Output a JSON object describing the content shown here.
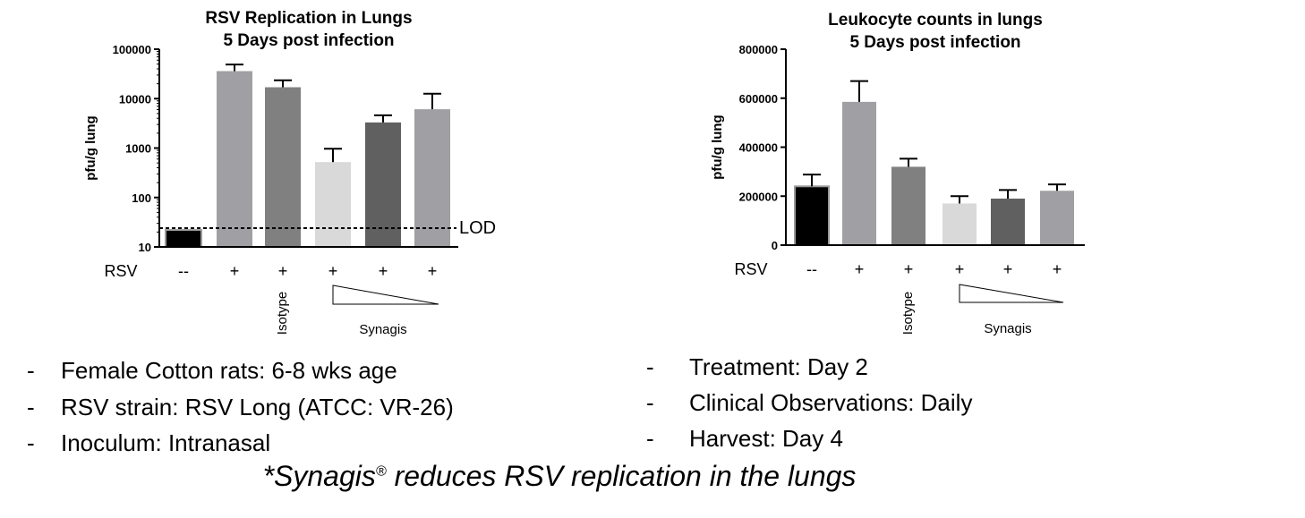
{
  "chart_data": [
    {
      "type": "bar",
      "title": [
        "RSV Replication in Lungs",
        "5 Days post infection"
      ],
      "ylabel": "pfu/g lung",
      "yscale": "log",
      "ylim": [
        10,
        100000
      ],
      "yticks": [
        10,
        100,
        1000,
        10000,
        100000
      ],
      "ytick_labels": [
        "10",
        "100",
        "1000",
        "10000",
        "100000"
      ],
      "row_label": "RSV",
      "categories": [
        "--",
        "+",
        "+",
        "+",
        "+",
        "+"
      ],
      "values": [
        22,
        36000,
        17000,
        520,
        3300,
        6100
      ],
      "errors": [
        0,
        13000,
        6500,
        450,
        1300,
        6500
      ],
      "colors": [
        "#000000",
        "#a0a0a4",
        "#808080",
        "#d9d9d9",
        "#606060",
        "#a0a0a4"
      ],
      "reference_line": {
        "value": 24,
        "label": "LOD"
      },
      "group_labels": {
        "isotype": "Isotype",
        "synagis": "Synagis"
      }
    },
    {
      "type": "bar",
      "title": [
        "Leukocyte counts in lungs",
        "5 Days post infection"
      ],
      "ylabel": "pfu/g lung",
      "yscale": "linear",
      "ylim": [
        0,
        800000
      ],
      "yticks": [
        0,
        200000,
        400000,
        600000,
        800000
      ],
      "ytick_labels": [
        "0",
        "200000",
        "400000",
        "600000",
        "800000"
      ],
      "row_label": "RSV",
      "categories": [
        "--",
        "+",
        "+",
        "+",
        "+",
        "+"
      ],
      "values": [
        240000,
        585000,
        320000,
        170000,
        190000,
        222000
      ],
      "errors": [
        48000,
        85000,
        33000,
        30000,
        35000,
        26000
      ],
      "colors": [
        "#000000",
        "#a0a0a4",
        "#808080",
        "#d9d9d9",
        "#606060",
        "#a0a0a4"
      ],
      "group_labels": {
        "isotype": "Isotype",
        "synagis": "Synagis"
      }
    }
  ],
  "bullets_left": [
    {
      "dash": "-",
      "text": "Female Cotton rats: 6-8 wks age"
    },
    {
      "dash": "-",
      "text": "RSV strain: RSV Long (ATCC: VR-26)"
    },
    {
      "dash": "-",
      "text": "Inoculum: Intranasal"
    }
  ],
  "bullets_right": [
    {
      "dash": "-",
      "text": "Treatment: Day 2"
    },
    {
      "dash": "-",
      "text": "Clinical Observations: Daily"
    },
    {
      "dash": "-",
      "text": "Harvest: Day 4"
    }
  ],
  "footnote": {
    "before": "*Synagis",
    "mark": "®",
    "after": " reduces RSV replication in the lungs"
  }
}
